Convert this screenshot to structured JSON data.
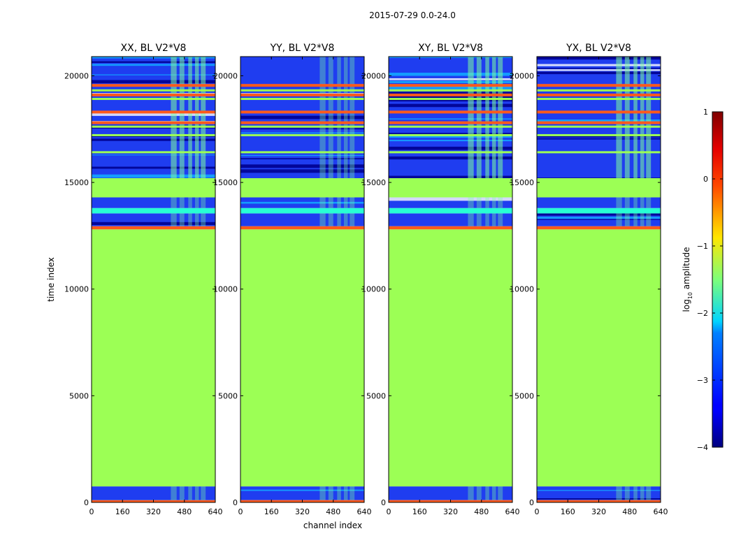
{
  "chart_data": {
    "type": "heatmap",
    "suptitle": "2015-07-29 0.0-24.0",
    "xlabel": "channel index",
    "ylabel": "time index",
    "x_ticks": [
      "0",
      "160",
      "320",
      "480",
      "640"
    ],
    "y_ticks": [
      "0",
      "5000",
      "10000",
      "15000",
      "20000"
    ],
    "xlim": [
      0,
      640
    ],
    "ylim": [
      0,
      20900
    ],
    "colorbar": {
      "label_main": "log",
      "label_sub": "10",
      "label_rest": " amplitude",
      "range": [
        -4,
        1
      ],
      "ticks": [
        "1",
        "0",
        "−1",
        "−2",
        "−3",
        "−4"
      ],
      "colormap": "jet"
    },
    "panels": [
      {
        "title": "XX, BL V2*V8",
        "bands": [
          {
            "from": 0,
            "to": 110,
            "kind": "flag"
          },
          {
            "from": 110,
            "to": 750,
            "kind": "noise"
          },
          {
            "from": 750,
            "to": 12800,
            "kind": "flat"
          },
          {
            "from": 12800,
            "to": 12950,
            "kind": "flag"
          },
          {
            "from": 12950,
            "to": 13550,
            "kind": "noise"
          },
          {
            "from": 13550,
            "to": 13800,
            "kind": "bright"
          },
          {
            "from": 13800,
            "to": 14300,
            "kind": "noise"
          },
          {
            "from": 14300,
            "to": 15200,
            "kind": "flat"
          },
          {
            "from": 15200,
            "to": 20900,
            "kind": "noise"
          }
        ],
        "flag_lines": [
          18300,
          19550,
          19100,
          17800
        ]
      },
      {
        "title": "YY, BL V2*V8",
        "bands": [
          {
            "from": 0,
            "to": 110,
            "kind": "flag"
          },
          {
            "from": 110,
            "to": 750,
            "kind": "noise"
          },
          {
            "from": 750,
            "to": 12800,
            "kind": "flat"
          },
          {
            "from": 12800,
            "to": 12950,
            "kind": "flag"
          },
          {
            "from": 12950,
            "to": 13550,
            "kind": "noise"
          },
          {
            "from": 13550,
            "to": 13800,
            "kind": "bright"
          },
          {
            "from": 13800,
            "to": 14300,
            "kind": "noise"
          },
          {
            "from": 14300,
            "to": 15200,
            "kind": "flat"
          },
          {
            "from": 15200,
            "to": 20900,
            "kind": "noise"
          }
        ],
        "flag_lines": [
          18300,
          19550,
          19100,
          17800
        ]
      },
      {
        "title": "XY, BL V2*V8",
        "bands": [
          {
            "from": 0,
            "to": 110,
            "kind": "flag"
          },
          {
            "from": 110,
            "to": 750,
            "kind": "noise"
          },
          {
            "from": 750,
            "to": 12800,
            "kind": "flat"
          },
          {
            "from": 12800,
            "to": 12950,
            "kind": "flag"
          },
          {
            "from": 12950,
            "to": 13550,
            "kind": "noise"
          },
          {
            "from": 13550,
            "to": 13800,
            "kind": "bright"
          },
          {
            "from": 13800,
            "to": 14300,
            "kind": "noise"
          },
          {
            "from": 14300,
            "to": 15200,
            "kind": "flat"
          },
          {
            "from": 15200,
            "to": 20900,
            "kind": "noise"
          }
        ],
        "flag_lines": [
          18300,
          19550,
          19100,
          17800
        ]
      },
      {
        "title": "YX, BL V2*V8",
        "bands": [
          {
            "from": 0,
            "to": 110,
            "kind": "flag"
          },
          {
            "from": 110,
            "to": 750,
            "kind": "noise"
          },
          {
            "from": 750,
            "to": 12800,
            "kind": "flat"
          },
          {
            "from": 12800,
            "to": 12950,
            "kind": "flag"
          },
          {
            "from": 12950,
            "to": 13550,
            "kind": "noise"
          },
          {
            "from": 13550,
            "to": 13800,
            "kind": "bright"
          },
          {
            "from": 13800,
            "to": 14300,
            "kind": "noise"
          },
          {
            "from": 14300,
            "to": 15200,
            "kind": "flat"
          },
          {
            "from": 15200,
            "to": 20900,
            "kind": "noise"
          }
        ],
        "flag_lines": [
          18300,
          19550,
          19100,
          17800
        ]
      }
    ],
    "rfi_channels": [
      [
        410,
        440
      ],
      [
        455,
        480
      ],
      [
        500,
        520
      ],
      [
        535,
        555
      ],
      [
        565,
        590
      ]
    ],
    "colors": {
      "flat": "#9cff55",
      "noise_bg": "#1f3df0",
      "noise_light": "#13a6ff",
      "bright": "#27ffd4",
      "rfi": "#7dffa0",
      "flag": "#ff5a1c",
      "gap": "#00008f"
    }
  }
}
